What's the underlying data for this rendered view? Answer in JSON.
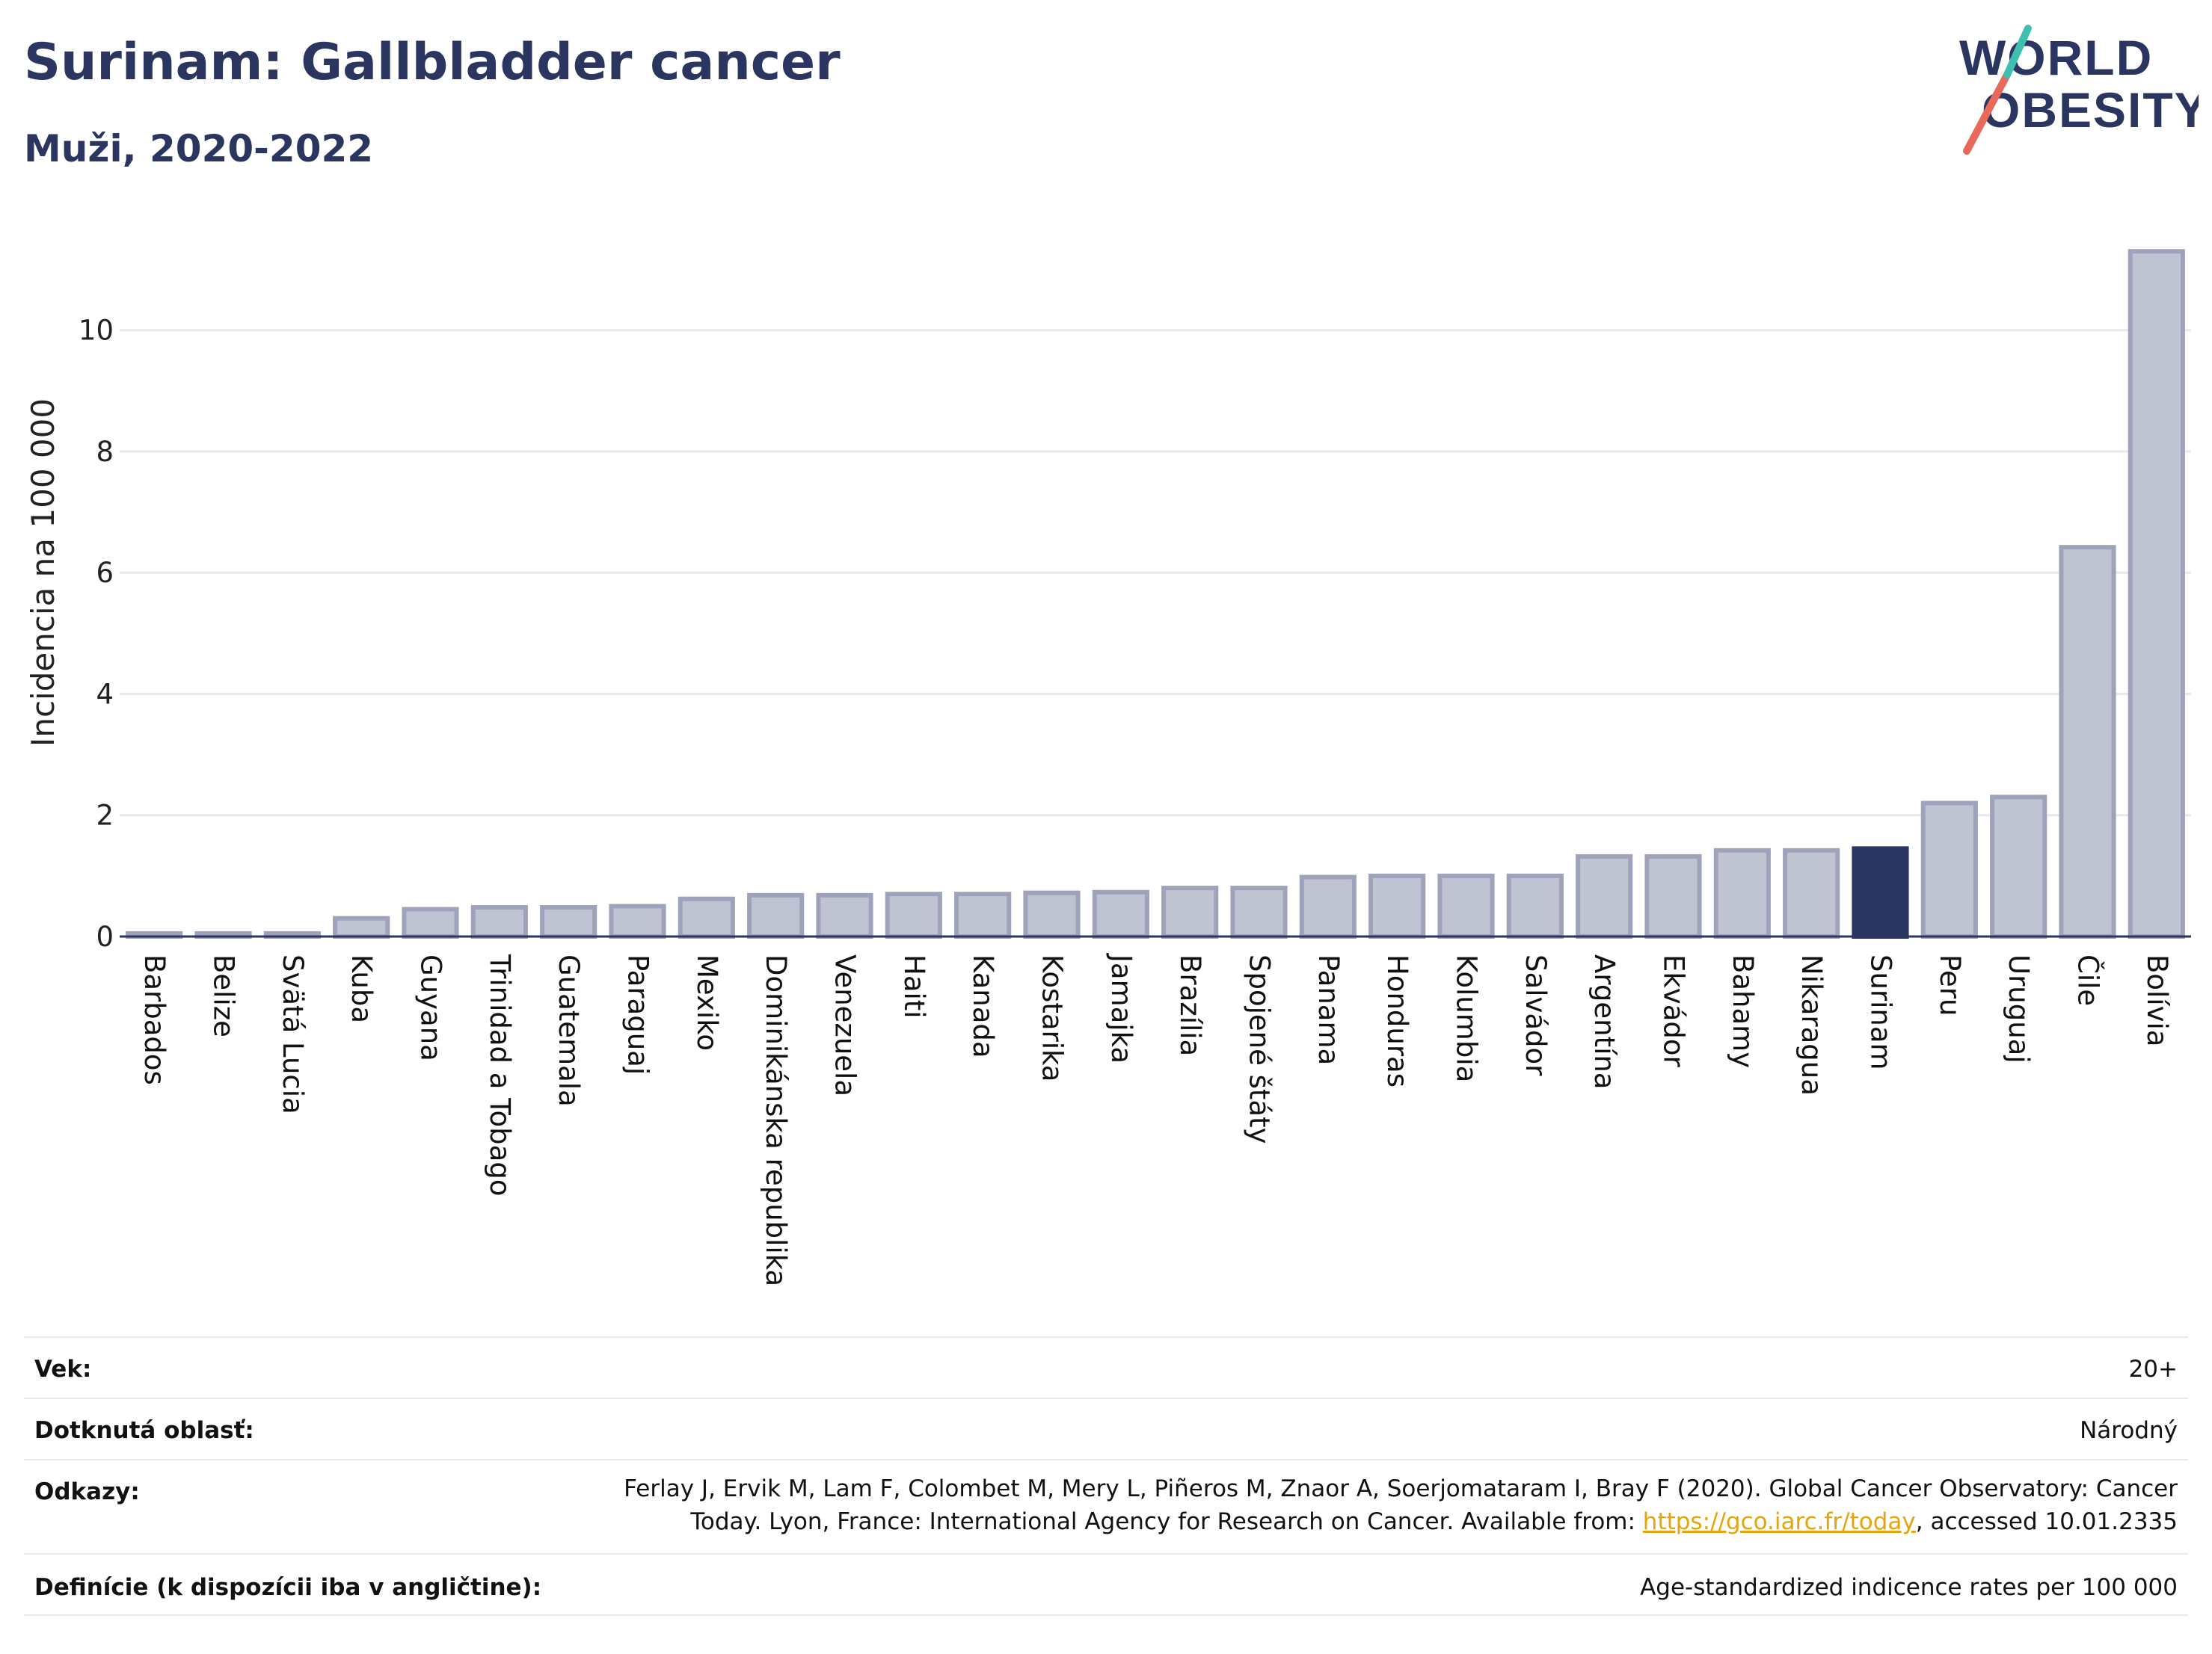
{
  "header": {
    "title": "Surinam: Gallbladder cancer",
    "subtitle": "Muži, 2020-2022"
  },
  "logo": {
    "line1": "WORLD",
    "line2": "OBESITY",
    "colors": {
      "text": "#2a3560",
      "stroke_red": "#e8685a",
      "stroke_teal": "#3ebfb0"
    }
  },
  "chart_data": {
    "type": "bar",
    "ylabel": "Incidencia na 100 000",
    "xlabel": "",
    "ylim": [
      0,
      11.5
    ],
    "yticks": [
      0,
      2,
      4,
      6,
      8,
      10
    ],
    "grid": true,
    "highlight": "Surinam",
    "colors": {
      "bar": "#c0c4d2",
      "bar_edge": "#9ea3bb",
      "highlight": "#2a3560",
      "grid": "#e6e8ee"
    },
    "categories": [
      "Barbados",
      "Belize",
      "Svätá Lucia",
      "Kuba",
      "Guyana",
      "Trinidad a Tobago",
      "Guatemala",
      "Paraguaj",
      "Mexiko",
      "Dominikánska republika",
      "Venezuela",
      "Haiti",
      "Kanada",
      "Kostarika",
      "Jamajka",
      "Brazília",
      "Spojené štáty",
      "Panama",
      "Honduras",
      "Kolumbia",
      "Salvádor",
      "Argentína",
      "Ekvádor",
      "Bahamy",
      "Nikaragua",
      "Surinam",
      "Peru",
      "Uruguaj",
      "Čile",
      "Bolívia"
    ],
    "values": [
      0.05,
      0.05,
      0.05,
      0.3,
      0.45,
      0.48,
      0.48,
      0.5,
      0.62,
      0.68,
      0.68,
      0.7,
      0.7,
      0.72,
      0.73,
      0.8,
      0.8,
      0.98,
      1.0,
      1.0,
      1.0,
      1.32,
      1.32,
      1.42,
      1.42,
      1.45,
      2.2,
      2.3,
      6.42,
      11.3
    ]
  },
  "meta": {
    "rows": [
      {
        "key": "Vek:",
        "value": "20+"
      },
      {
        "key": "Dotknutá oblasť:",
        "value": "Národný"
      },
      {
        "key": "Odkazy:",
        "value_line1": "Ferlay J, Ervik M, Lam F, Colombet M, Mery L, Piñeros M, Znaor A, Soerjomataram I, Bray F (2020). Global Cancer Observatory: Cancer",
        "value_line2_pre": "Today. Lyon, France: International Agency for Research on Cancer. Available from: ",
        "value_link": "https://gco.iarc.fr/today",
        "value_line2_post": ", accessed 10.01.2335"
      },
      {
        "key": "Definície (k dispozícii iba v angličtine):",
        "value": "Age-standardized indicence rates per 100 000"
      }
    ]
  }
}
